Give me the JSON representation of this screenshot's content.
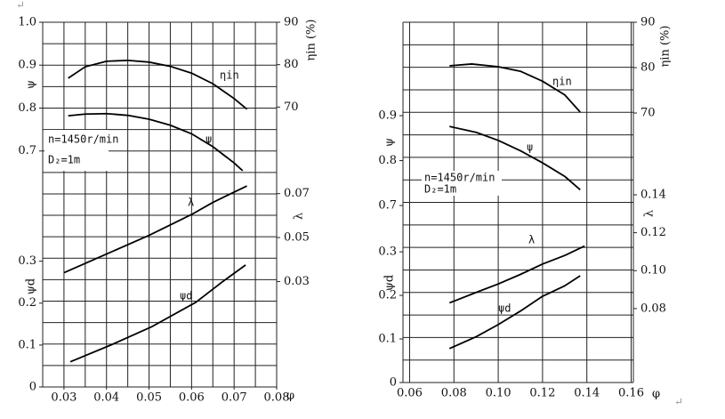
{
  "corner_marks": [
    "↵",
    "↵"
  ],
  "chart_data": [
    {
      "type": "line",
      "color": "#000000",
      "xlabel": "φ",
      "xlim": [
        0.025,
        0.08
      ],
      "xticks": [
        0.03,
        0.04,
        0.05,
        0.06,
        0.07,
        0.08
      ],
      "axes": [
        {
          "label": "ψ",
          "side": "left",
          "lim": [
            0.15,
            1.0
          ],
          "ticks": [
            0.7,
            0.8,
            0.9,
            {
              "value": 1,
              "label": "1.0"
            }
          ]
        },
        {
          "label": "ψd",
          "side": "left",
          "lim": [
            0,
            0.87
          ],
          "ticks": [
            0,
            0.1,
            0.2,
            0.3
          ]
        },
        {
          "label": "ηin (%)",
          "side": "right",
          "lim": [
            4,
            90
          ],
          "ticks": [
            70,
            80,
            90
          ]
        },
        {
          "label": "λ",
          "side": "right",
          "lim": [
            -0.018,
            0.148
          ],
          "ticks": [
            0.03,
            0.05,
            0.07
          ]
        }
      ],
      "annotations": [
        "n=1450r/min",
        "D₂=1m"
      ],
      "series": [
        {
          "name": "ηin",
          "axis": 2,
          "x": [
            0.031,
            0.035,
            0.04,
            0.045,
            0.05,
            0.055,
            0.06,
            0.065,
            0.07,
            0.073
          ],
          "values": [
            76.8,
            79.5,
            80.8,
            81.0,
            80.6,
            79.6,
            78,
            75.5,
            72,
            69.5
          ]
        },
        {
          "name": "ψ",
          "axis": 0,
          "x": [
            0.031,
            0.035,
            0.04,
            0.045,
            0.05,
            0.055,
            0.06,
            0.065,
            0.07,
            0.072
          ],
          "values": [
            0.782,
            0.786,
            0.787,
            0.783,
            0.774,
            0.76,
            0.74,
            0.71,
            0.672,
            0.654
          ]
        },
        {
          "name": "λ",
          "axis": 3,
          "x": [
            0.03,
            0.04,
            0.05,
            0.06,
            0.065,
            0.073
          ],
          "values": [
            0.034,
            0.0425,
            0.051,
            0.0605,
            0.066,
            0.0735
          ]
        },
        {
          "name": "ψd",
          "axis": 1,
          "x": [
            0.0315,
            0.041,
            0.0505,
            0.061,
            0.067,
            0.0727
          ],
          "values": [
            0.06,
            0.1,
            0.143,
            0.202,
            0.249,
            0.291
          ]
        }
      ]
    },
    {
      "type": "line",
      "color": "#000000",
      "xlabel": "φ",
      "xlim": [
        0.057,
        0.161
      ],
      "xticks": [
        0.06,
        0.08,
        {
          "value": 0.1,
          "label": "0.10"
        },
        0.12,
        0.14,
        0.16
      ],
      "axes": [
        {
          "label": "ψ",
          "side": "left",
          "lim": [
            0.306,
            1.108
          ],
          "ticks": [
            0.7,
            0.8,
            0.9
          ]
        },
        {
          "label": "ψd",
          "side": "left",
          "lim": [
            0,
            0.827
          ],
          "ticks": [
            0,
            0.1,
            0.2,
            0.3
          ]
        },
        {
          "label": "ηin (%)",
          "side": "right",
          "lim": [
            10.6,
            90
          ],
          "ticks": [
            70,
            80,
            90
          ]
        },
        {
          "label": "λ",
          "side": "right",
          "lim": [
            0.041,
            0.231
          ],
          "ticks": [
            0.08,
            {
              "value": 0.1,
              "label": "0.10"
            },
            0.12,
            0.14
          ]
        }
      ],
      "annotations": [
        "n=1450r/min",
        "D₂=1m"
      ],
      "series": [
        {
          "name": "ηin",
          "axis": 2,
          "x": [
            0.078,
            0.088,
            0.1,
            0.11,
            0.12,
            0.13,
            0.137
          ],
          "values": [
            80.4,
            80.8,
            80.2,
            79.2,
            77,
            74,
            70.2
          ]
        },
        {
          "name": "ψ",
          "axis": 0,
          "x": [
            0.078,
            0.09,
            0.1,
            0.11,
            0.12,
            0.13,
            0.137
          ],
          "values": [
            0.876,
            0.863,
            0.845,
            0.822,
            0.795,
            0.765,
            0.735
          ]
        },
        {
          "name": "λ",
          "axis": 3,
          "x": [
            0.078,
            0.09,
            0.1,
            0.11,
            0.12,
            0.13,
            0.139
          ],
          "values": [
            0.083,
            0.0885,
            0.093,
            0.098,
            0.1035,
            0.108,
            0.113
          ]
        },
        {
          "name": "ψd",
          "axis": 1,
          "x": [
            0.078,
            0.09,
            0.1,
            0.11,
            0.12,
            0.13,
            0.137
          ],
          "values": [
            0.078,
            0.105,
            0.133,
            0.164,
            0.198,
            0.222,
            0.245
          ]
        }
      ]
    }
  ]
}
